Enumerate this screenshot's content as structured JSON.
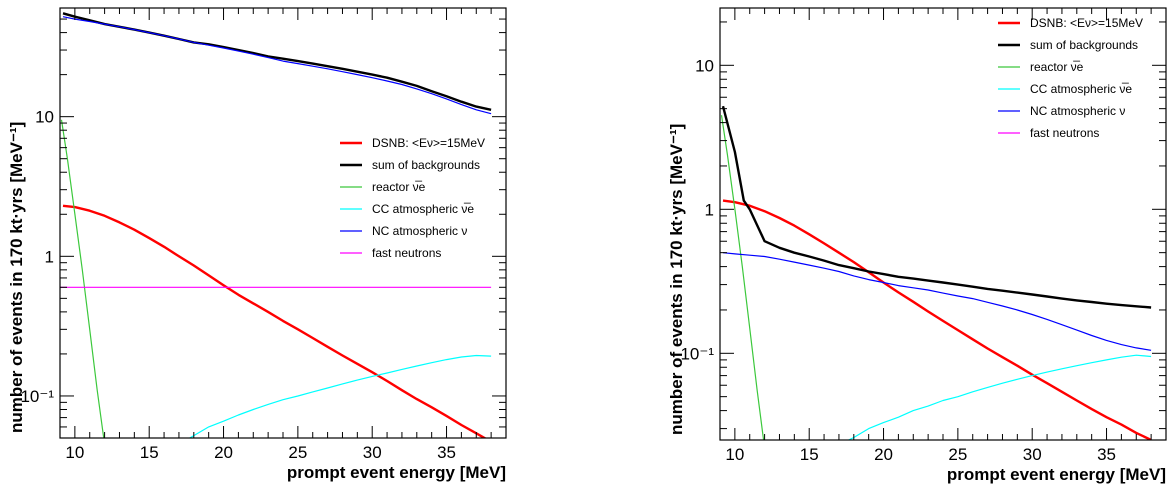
{
  "chart_data": [
    {
      "type": "line",
      "xlabel": "prompt event energy [MeV]",
      "ylabel": "number of events in 170 kt·yrs [MeV⁻¹]",
      "xlim": [
        9,
        39
      ],
      "ylim": [
        0.05,
        60
      ],
      "yscale": "log",
      "xticks": [
        10,
        15,
        20,
        25,
        30,
        35
      ],
      "yticks": [
        {
          "value": 10,
          "label": "10"
        },
        {
          "value": 1,
          "label": "1"
        },
        {
          "value": 0.1,
          "label": "10⁻¹"
        }
      ],
      "legend_position": "right",
      "series": [
        {
          "name": "DSNB: <Eν>=15MeV",
          "color": "#ff0000",
          "width": 2.4,
          "x": [
            9.2,
            10,
            11,
            12,
            13,
            14,
            15,
            16,
            17,
            18,
            19,
            20,
            21,
            22,
            23,
            24,
            25,
            26,
            27,
            28,
            29,
            30,
            31,
            32,
            33,
            34,
            35,
            36,
            37,
            38
          ],
          "y": [
            2.3,
            2.25,
            2.12,
            1.95,
            1.75,
            1.55,
            1.35,
            1.17,
            1.0,
            0.86,
            0.73,
            0.62,
            0.53,
            0.46,
            0.4,
            0.345,
            0.3,
            0.26,
            0.225,
            0.195,
            0.17,
            0.148,
            0.128,
            0.11,
            0.095,
            0.083,
            0.072,
            0.062,
            0.054,
            0.047
          ]
        },
        {
          "name": "sum of backgrounds",
          "color": "#000000",
          "width": 2.4,
          "x": [
            9.2,
            10,
            11,
            12,
            13,
            14,
            15,
            16,
            17,
            18,
            19,
            20,
            21,
            22,
            23,
            24,
            25,
            26,
            27,
            28,
            29,
            30,
            31,
            32,
            33,
            34,
            35,
            36,
            37,
            38
          ],
          "y": [
            55,
            52,
            49,
            46,
            44,
            42,
            40,
            38,
            36,
            34,
            33,
            31.5,
            30,
            28.5,
            27,
            26,
            25,
            24,
            23,
            22,
            21,
            20,
            19,
            17.8,
            16.6,
            15.2,
            14,
            12.8,
            11.8,
            11.2
          ]
        },
        {
          "name": "reactor ν̅e",
          "color": "#3cc83c",
          "width": 1.2,
          "x": [
            9.1,
            9.5,
            10,
            10.5,
            11,
            11.5,
            12
          ],
          "y": [
            9.5,
            5.0,
            2.0,
            0.8,
            0.3,
            0.11,
            0.045
          ]
        },
        {
          "name": "CC atmospheric ν̅e",
          "color": "#00ffff",
          "width": 1.2,
          "x": [
            17,
            18,
            19,
            20,
            21,
            22,
            23,
            24,
            25,
            26,
            27,
            28,
            29,
            30,
            31,
            32,
            33,
            34,
            35,
            36,
            37,
            38
          ],
          "y": [
            0.045,
            0.052,
            0.06,
            0.066,
            0.073,
            0.08,
            0.087,
            0.094,
            0.1,
            0.107,
            0.114,
            0.122,
            0.13,
            0.138,
            0.146,
            0.155,
            0.164,
            0.173,
            0.182,
            0.19,
            0.195,
            0.193
          ]
        },
        {
          "name": "NC atmospheric ν",
          "color": "#0000ff",
          "width": 1.2,
          "x": [
            9.2,
            10,
            11,
            12,
            13,
            14,
            15,
            16,
            17,
            18,
            19,
            20,
            21,
            22,
            23,
            24,
            25,
            26,
            27,
            28,
            29,
            30,
            31,
            32,
            33,
            34,
            35,
            36,
            37,
            38
          ],
          "y": [
            52,
            50,
            48,
            46,
            44,
            42,
            40,
            38,
            36,
            34,
            32.5,
            31,
            29.5,
            28,
            26.5,
            25,
            24,
            23,
            22,
            21,
            20,
            19,
            18,
            17,
            15.8,
            14.6,
            13.4,
            12.2,
            11.2,
            10.5
          ]
        },
        {
          "name": "fast neutrons",
          "color": "#ff00ff",
          "width": 1.2,
          "x": [
            9,
            38
          ],
          "y": [
            0.6,
            0.6
          ]
        }
      ]
    },
    {
      "type": "line",
      "xlabel": "prompt event energy [MeV]",
      "ylabel": "number of events in 170 kt·yrs [MeV⁻¹]",
      "xlim": [
        9,
        39
      ],
      "ylim": [
        0.025,
        25
      ],
      "yscale": "log",
      "xticks": [
        10,
        15,
        20,
        25,
        30,
        35
      ],
      "yticks": [
        {
          "value": 10,
          "label": "10"
        },
        {
          "value": 1,
          "label": "1"
        },
        {
          "value": 0.1,
          "label": "10⁻¹"
        }
      ],
      "legend_position": "top-right",
      "series": [
        {
          "name": "DSNB: <Eν>=15MeV",
          "color": "#ff0000",
          "width": 2.4,
          "x": [
            9.2,
            10,
            11,
            12,
            13,
            14,
            15,
            16,
            17,
            18,
            19,
            20,
            21,
            22,
            23,
            24,
            25,
            26,
            27,
            28,
            29,
            30,
            31,
            32,
            33,
            34,
            35,
            36,
            37,
            38
          ],
          "y": [
            1.15,
            1.12,
            1.06,
            0.97,
            0.87,
            0.77,
            0.67,
            0.58,
            0.5,
            0.43,
            0.365,
            0.31,
            0.265,
            0.228,
            0.195,
            0.168,
            0.145,
            0.125,
            0.108,
            0.094,
            0.082,
            0.071,
            0.062,
            0.054,
            0.047,
            0.041,
            0.036,
            0.032,
            0.028,
            0.025
          ]
        },
        {
          "name": "sum of backgrounds",
          "color": "#000000",
          "width": 2.4,
          "x": [
            9.2,
            10,
            10.6,
            11,
            12,
            13,
            14,
            15,
            16,
            17,
            18,
            19,
            20,
            21,
            22,
            23,
            24,
            25,
            26,
            27,
            28,
            29,
            30,
            31,
            32,
            33,
            34,
            35,
            36,
            37,
            38
          ],
          "y": [
            5.2,
            2.5,
            1.15,
            1.0,
            0.6,
            0.54,
            0.5,
            0.47,
            0.44,
            0.41,
            0.39,
            0.37,
            0.355,
            0.34,
            0.33,
            0.32,
            0.31,
            0.3,
            0.29,
            0.28,
            0.272,
            0.264,
            0.256,
            0.248,
            0.24,
            0.233,
            0.227,
            0.221,
            0.216,
            0.212,
            0.208
          ]
        },
        {
          "name": "reactor ν̅e",
          "color": "#3cc83c",
          "width": 1.2,
          "x": [
            9.1,
            9.5,
            10,
            10.5,
            11,
            11.5,
            12
          ],
          "y": [
            4.5,
            2.4,
            1.0,
            0.4,
            0.15,
            0.055,
            0.022
          ]
        },
        {
          "name": "CC atmospheric ν̅e",
          "color": "#00ffff",
          "width": 1.2,
          "x": [
            17.3,
            18,
            19,
            20,
            21,
            22,
            23,
            24,
            25,
            26,
            27,
            28,
            29,
            30,
            31,
            32,
            33,
            34,
            35,
            36,
            37,
            38
          ],
          "y": [
            0.024,
            0.026,
            0.03,
            0.033,
            0.036,
            0.04,
            0.043,
            0.047,
            0.05,
            0.054,
            0.058,
            0.062,
            0.066,
            0.07,
            0.074,
            0.078,
            0.082,
            0.086,
            0.09,
            0.094,
            0.097,
            0.095
          ]
        },
        {
          "name": "NC atmospheric ν",
          "color": "#0000ff",
          "width": 1.2,
          "x": [
            9.2,
            10,
            11,
            12,
            13,
            14,
            15,
            16,
            17,
            18,
            19,
            20,
            21,
            22,
            23,
            24,
            25,
            26,
            27,
            28,
            29,
            30,
            31,
            32,
            33,
            34,
            35,
            36,
            37,
            38
          ],
          "y": [
            0.5,
            0.49,
            0.48,
            0.47,
            0.45,
            0.43,
            0.41,
            0.39,
            0.37,
            0.345,
            0.325,
            0.31,
            0.295,
            0.285,
            0.275,
            0.262,
            0.25,
            0.24,
            0.226,
            0.213,
            0.2,
            0.186,
            0.172,
            0.158,
            0.145,
            0.133,
            0.123,
            0.115,
            0.109,
            0.105
          ]
        },
        {
          "name": "fast neutrons",
          "color": "#ff00ff",
          "width": 1.2,
          "x": [],
          "y": []
        }
      ]
    }
  ]
}
